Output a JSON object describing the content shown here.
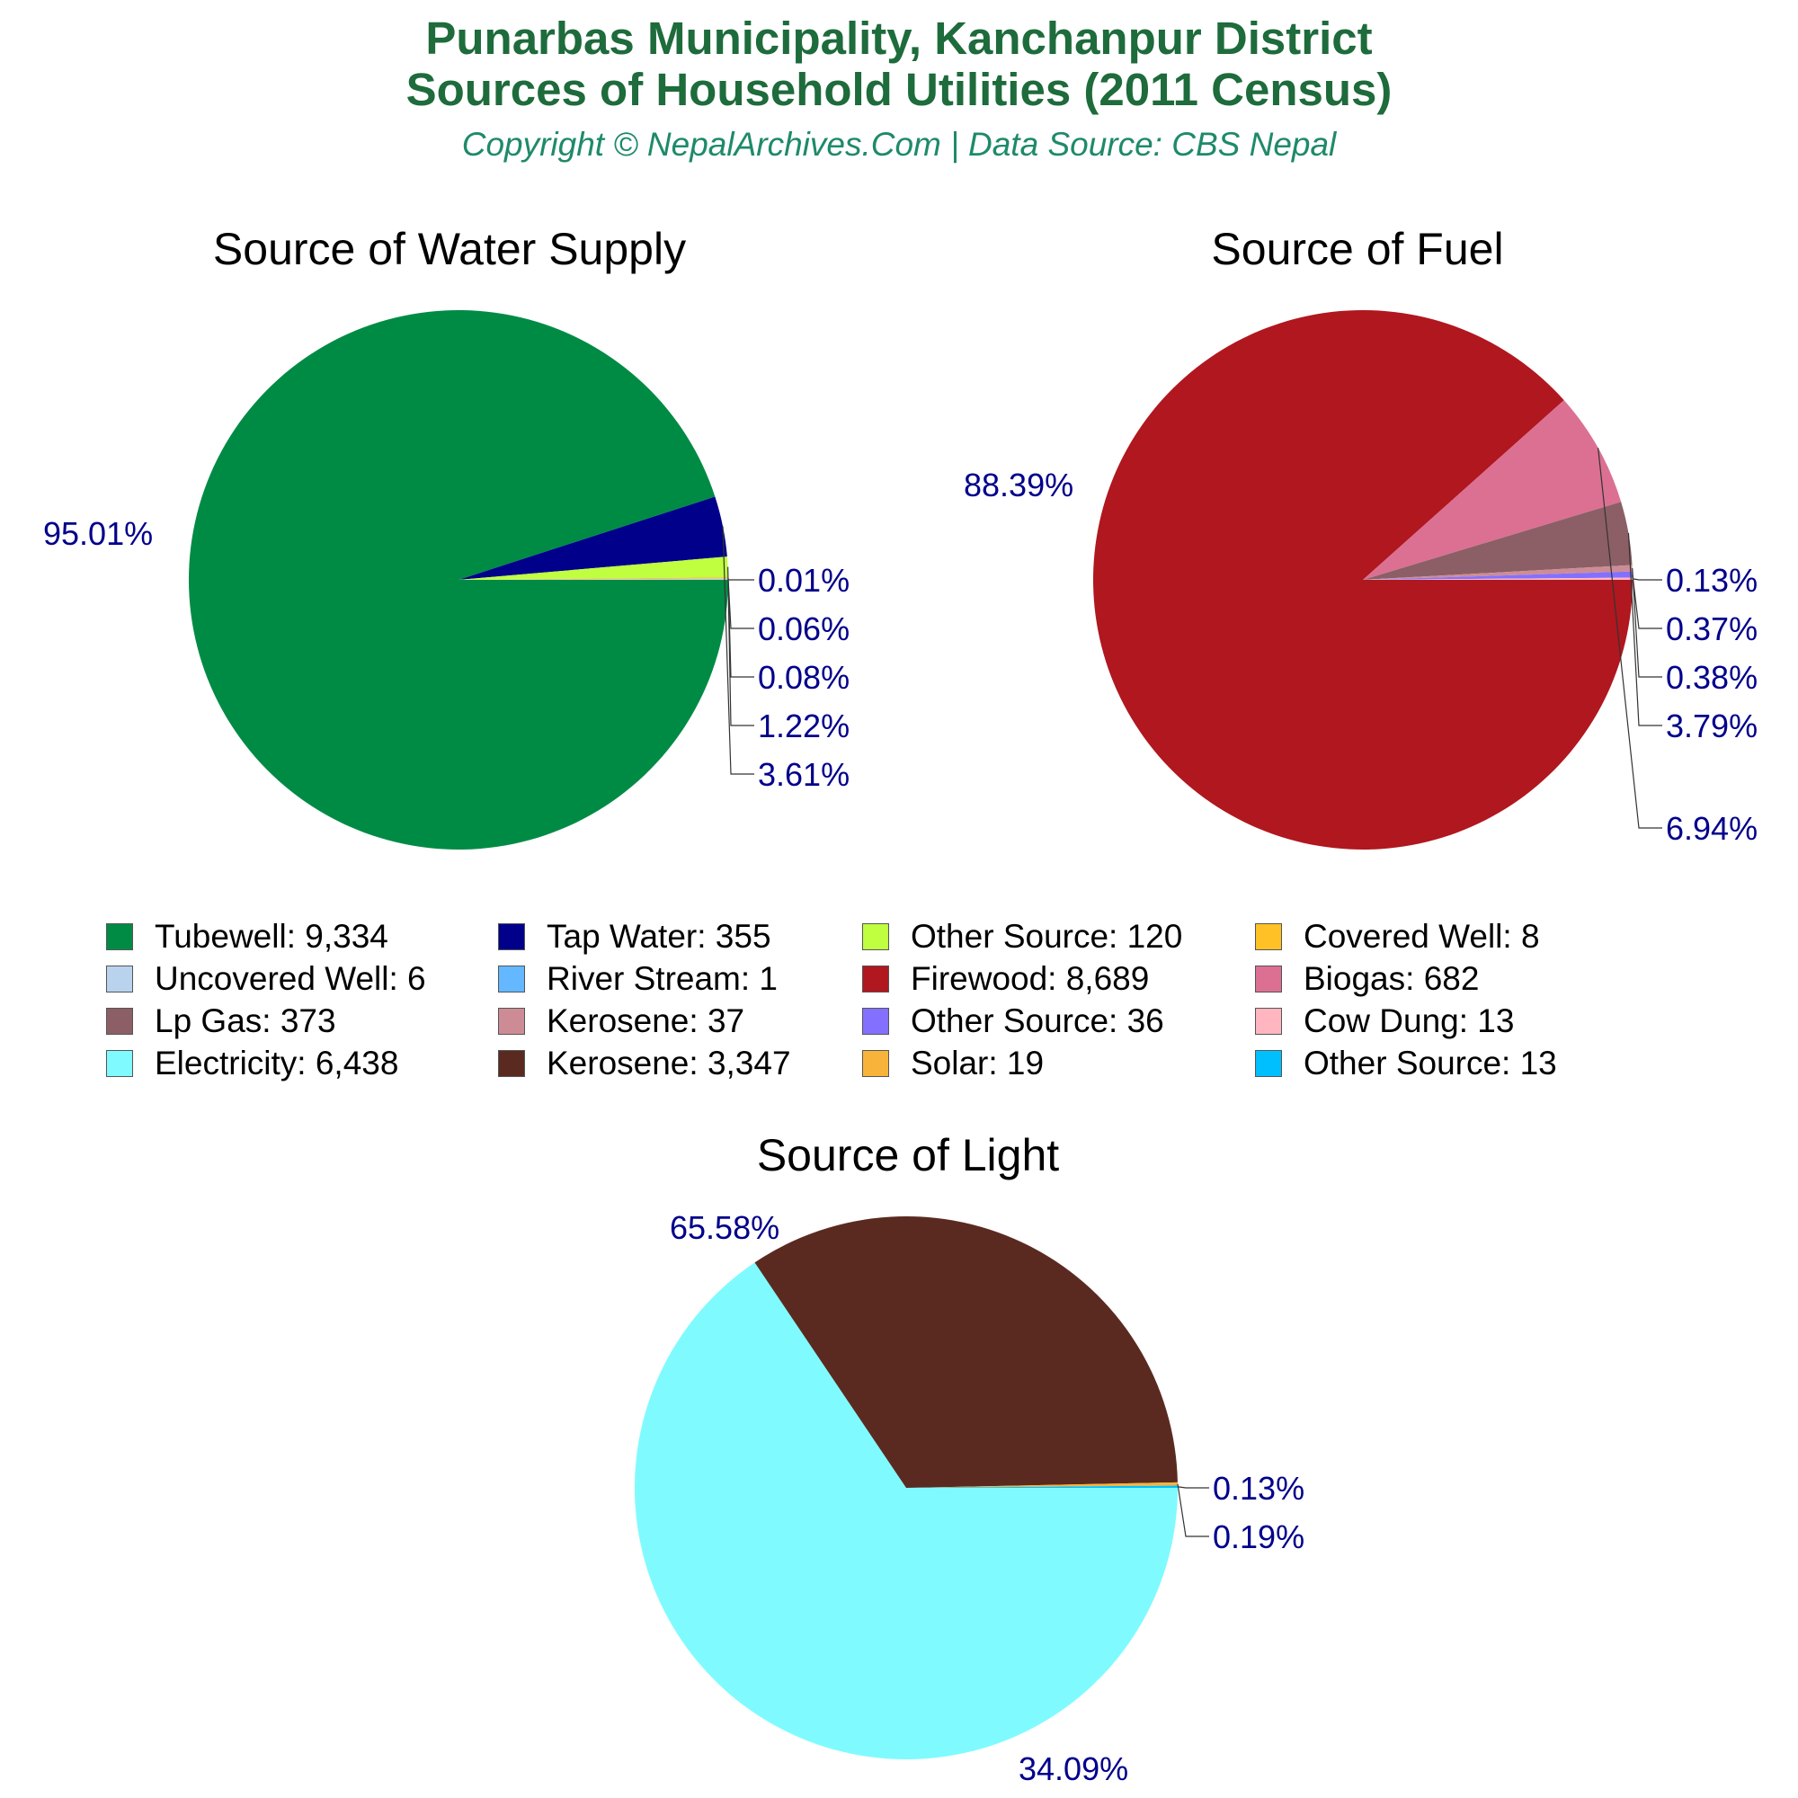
{
  "header": {
    "title_line1": "Punarbas Municipality, Kanchanpur District",
    "title_line2": "Sources of Household Utilities (2011 Census)",
    "subtitle": "Copyright © NepalArchives.Com | Data Source: CBS Nepal"
  },
  "label_color": "#00008b",
  "chart_data": [
    {
      "type": "pie",
      "title": "Source of Water Supply",
      "slices": [
        {
          "label": "Tubewell",
          "value": 9334,
          "percent_label": "95.01%",
          "color": "#008b45"
        },
        {
          "label": "Tap Water",
          "value": 355,
          "percent_label": "3.61%",
          "color": "#00008b"
        },
        {
          "label": "Other Source",
          "value": 120,
          "percent_label": "1.22%",
          "color": "#bfff3f"
        },
        {
          "label": "Covered Well",
          "value": 8,
          "percent_label": "0.08%",
          "color": "#ffc125"
        },
        {
          "label": "Uncovered Well",
          "value": 6,
          "percent_label": "0.06%",
          "color": "#b9d3ee"
        },
        {
          "label": "River Stream",
          "value": 1,
          "percent_label": "0.01%",
          "color": "#63b8ff"
        }
      ]
    },
    {
      "type": "pie",
      "title": "Source of Fuel",
      "slices": [
        {
          "label": "Firewood",
          "value": 8689,
          "percent_label": "88.39%",
          "color": "#b0171f"
        },
        {
          "label": "Biogas",
          "value": 682,
          "percent_label": "6.94%",
          "color": "#db7093"
        },
        {
          "label": "Lp Gas",
          "value": 373,
          "percent_label": "3.79%",
          "color": "#8b5f65"
        },
        {
          "label": "Kerosene",
          "value": 37,
          "percent_label": "0.38%",
          "color": "#cd8c95"
        },
        {
          "label": "Other Source",
          "value": 36,
          "percent_label": "0.37%",
          "color": "#8470ff"
        },
        {
          "label": "Cow Dung",
          "value": 13,
          "percent_label": "0.13%",
          "color": "#ffb6c1"
        }
      ]
    },
    {
      "type": "pie",
      "title": "Source of Light",
      "slices": [
        {
          "label": "Electricity",
          "value": 6438,
          "percent_label": "65.58%",
          "color": "#7ffbff"
        },
        {
          "label": "Kerosene",
          "value": 3347,
          "percent_label": "34.09%",
          "color": "#5a2a20"
        },
        {
          "label": "Solar",
          "value": 19,
          "percent_label": "0.19%",
          "color": "#f8b43a"
        },
        {
          "label": "Other Source",
          "value": 13,
          "percent_label": "0.13%",
          "color": "#00bfff"
        }
      ]
    }
  ],
  "legend": [
    {
      "label": "Tubewell: 9,334",
      "color": "#008b45"
    },
    {
      "label": "Tap Water: 355",
      "color": "#00008b"
    },
    {
      "label": "Other Source: 120",
      "color": "#bfff3f"
    },
    {
      "label": "Covered Well: 8",
      "color": "#ffc125"
    },
    {
      "label": "Uncovered Well: 6",
      "color": "#b9d3ee"
    },
    {
      "label": "River Stream: 1",
      "color": "#63b8ff"
    },
    {
      "label": "Firewood: 8,689",
      "color": "#b0171f"
    },
    {
      "label": "Biogas: 682",
      "color": "#db7093"
    },
    {
      "label": "Lp Gas: 373",
      "color": "#8b5f65"
    },
    {
      "label": "Kerosene: 37",
      "color": "#cd8c95"
    },
    {
      "label": "Other Source: 36",
      "color": "#8470ff"
    },
    {
      "label": "Cow Dung: 13",
      "color": "#ffb6c1"
    },
    {
      "label": "Electricity: 6,438",
      "color": "#7ffbff"
    },
    {
      "label": "Kerosene: 3,347",
      "color": "#5a2a20"
    },
    {
      "label": "Solar: 19",
      "color": "#f8b43a"
    },
    {
      "label": "Other Source: 13",
      "color": "#00bfff"
    }
  ]
}
